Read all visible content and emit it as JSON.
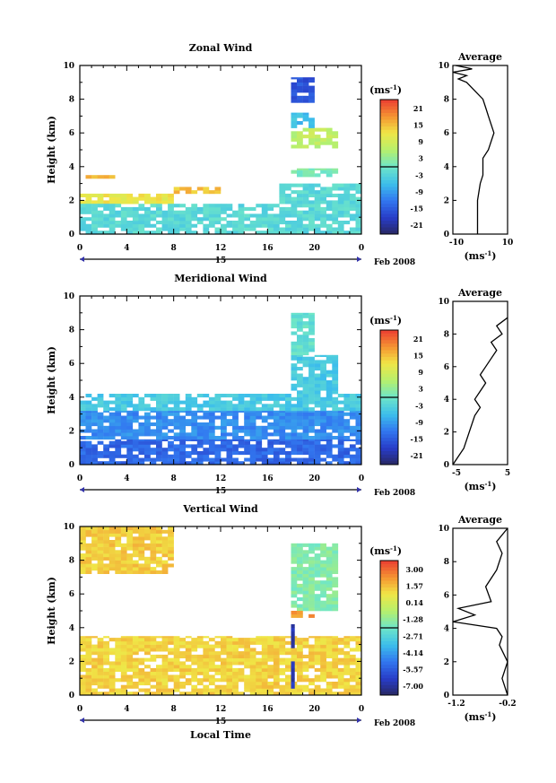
{
  "panels": [
    {
      "title": "Zonal Wind",
      "ylabel": "Height (km)",
      "yticks": [
        "0",
        "2",
        "4",
        "6",
        "8",
        "10"
      ],
      "xticks": [
        "0",
        "4",
        "8",
        "12",
        "16",
        "20",
        "0"
      ],
      "date_center": "15",
      "date_suffix": "Feb 2008",
      "cb_units": "(ms",
      "cb_sup": "-1",
      "cb_ticks": [
        "21",
        "15",
        "9",
        "3",
        "-3",
        "-9",
        "-15",
        "-21"
      ],
      "avg_title": "Average",
      "avg_xticks": [
        "-10",
        "10"
      ],
      "avg_yticks": [
        "0",
        "2",
        "4",
        "6",
        "8",
        "10"
      ],
      "avg_units": "(ms",
      "avg_sup": "-1"
    },
    {
      "title": "Meridional Wind",
      "ylabel": "Height (km)",
      "yticks": [
        "0",
        "2",
        "4",
        "6",
        "8",
        "10"
      ],
      "xticks": [
        "0",
        "4",
        "8",
        "12",
        "16",
        "20",
        "0"
      ],
      "date_center": "15",
      "date_suffix": "Feb 2008",
      "cb_units": "(ms",
      "cb_sup": "-1",
      "cb_ticks": [
        "21",
        "15",
        "9",
        "3",
        "-3",
        "-9",
        "-15",
        "-21"
      ],
      "avg_title": "Average",
      "avg_xticks": [
        "-5",
        "5"
      ],
      "avg_yticks": [
        "0",
        "2",
        "4",
        "6",
        "8",
        "10"
      ],
      "avg_units": "(ms",
      "avg_sup": "-1"
    },
    {
      "title": "Vertical Wind",
      "ylabel": "Height (km)",
      "yticks": [
        "0",
        "2",
        "4",
        "6",
        "8",
        "10"
      ],
      "xticks": [
        "0",
        "4",
        "8",
        "12",
        "16",
        "20",
        "0"
      ],
      "date_center": "15",
      "date_suffix": "Feb 2008",
      "xlabel": "Local Time",
      "cb_units": "(ms",
      "cb_sup": "-1",
      "cb_ticks": [
        "3.00",
        "1.57",
        "0.14",
        "-1.28",
        "-2.71",
        "-4.14",
        "-5.57",
        "-7.00"
      ],
      "avg_title": "Average",
      "avg_xticks": [
        "-1.2",
        "-0.2"
      ],
      "avg_yticks": [
        "0",
        "2",
        "4",
        "6",
        "8",
        "10"
      ],
      "avg_units": "(ms",
      "avg_sup": "-1"
    }
  ],
  "chart_data": [
    {
      "type": "heatmap",
      "title": "Zonal Wind",
      "xlabel": "",
      "ylabel": "Height (km)",
      "xlim": [
        0,
        24
      ],
      "ylim": [
        0,
        10
      ],
      "colorbar": {
        "units": "ms-1",
        "range": [
          -21,
          21
        ]
      },
      "regions": [
        {
          "t": [
            0,
            8
          ],
          "h": [
            1.8,
            2.4
          ],
          "value": 10
        },
        {
          "t": [
            0,
            3
          ],
          "h": [
            3.3,
            3.5
          ],
          "value": 14
        },
        {
          "t": [
            8,
            12
          ],
          "h": [
            2.4,
            2.8
          ],
          "value": 13
        },
        {
          "t": [
            0,
            17
          ],
          "h": [
            0,
            1.8
          ],
          "value": -2
        },
        {
          "t": [
            17,
            24
          ],
          "h": [
            0,
            3.0
          ],
          "value": -2
        },
        {
          "t": [
            18,
            22
          ],
          "h": [
            3.4,
            3.9
          ],
          "value": 1
        },
        {
          "t": [
            18,
            22
          ],
          "h": [
            5.1,
            6.3
          ],
          "value": 6
        },
        {
          "t": [
            18,
            20
          ],
          "h": [
            6.3,
            7.2
          ],
          "value": -5
        },
        {
          "t": [
            18,
            20
          ],
          "h": [
            7.8,
            9.3
          ],
          "value": -14
        }
      ],
      "average_profile": {
        "x": [
          -1,
          -1,
          -1,
          0,
          1,
          1,
          1,
          3,
          4,
          5,
          4,
          3,
          2,
          1,
          -2,
          -5,
          -8,
          -5,
          -10,
          -3,
          -9
        ],
        "y": [
          0,
          1,
          2,
          3,
          3.5,
          4,
          4.5,
          5,
          5.5,
          6,
          6.5,
          7,
          7.5,
          8,
          8.5,
          9,
          9.2,
          9.4,
          9.6,
          9.8,
          10
        ],
        "xlim": [
          -10,
          10
        ],
        "ylim": [
          0,
          10
        ]
      }
    },
    {
      "type": "heatmap",
      "title": "Meridional Wind",
      "xlabel": "",
      "ylabel": "Height (km)",
      "xlim": [
        0,
        24
      ],
      "ylim": [
        0,
        10
      ],
      "colorbar": {
        "units": "ms-1",
        "range": [
          -21,
          21
        ]
      },
      "regions": [
        {
          "t": [
            0,
            24
          ],
          "h": [
            0,
            1.5
          ],
          "value": -12
        },
        {
          "t": [
            0,
            24
          ],
          "h": [
            1.5,
            3.2
          ],
          "value": -9
        },
        {
          "t": [
            0,
            24
          ],
          "h": [
            3.2,
            4.2
          ],
          "value": -4
        },
        {
          "t": [
            18,
            22
          ],
          "h": [
            4.2,
            6.5
          ],
          "value": -4
        },
        {
          "t": [
            18,
            20
          ],
          "h": [
            6.5,
            9.0
          ],
          "value": -1
        }
      ],
      "average_profile": {
        "x": [
          -5,
          -3,
          -2,
          -1,
          0,
          -1,
          0,
          1,
          0,
          1,
          2,
          3,
          2,
          4,
          3,
          5
        ],
        "y": [
          0,
          1,
          2,
          3,
          3.5,
          4,
          4.5,
          5,
          5.5,
          6,
          6.5,
          7,
          7.5,
          8,
          8.5,
          9
        ],
        "xlim": [
          -5,
          5
        ],
        "ylim": [
          0,
          10
        ]
      }
    },
    {
      "type": "heatmap",
      "title": "Vertical Wind",
      "xlabel": "Local Time",
      "ylabel": "Height (km)",
      "xlim": [
        0,
        24
      ],
      "ylim": [
        0,
        10
      ],
      "colorbar": {
        "units": "ms-1",
        "range": [
          -7.0,
          3.0
        ]
      },
      "regions": [
        {
          "t": [
            0,
            24
          ],
          "h": [
            0,
            3.5
          ],
          "value": 0.8
        },
        {
          "t": [
            0,
            8
          ],
          "h": [
            7.2,
            10
          ],
          "value": 0.9
        },
        {
          "t": [
            18,
            22
          ],
          "h": [
            5.0,
            9.0
          ],
          "value": -1.6
        },
        {
          "t": [
            18,
            20
          ],
          "h": [
            4.6,
            5.0
          ],
          "value": 1.6
        },
        {
          "t": [
            18,
            18.3
          ],
          "h": [
            0,
            4.5
          ],
          "value": -6
        }
      ],
      "average_profile": {
        "x": [
          -0.2,
          -0.3,
          -0.2,
          -0.35,
          -0.3,
          -0.4,
          -1.2,
          -0.8,
          -1.1,
          -0.5,
          -0.6,
          -0.4,
          -0.3,
          -0.4,
          -0.2
        ],
        "y": [
          0,
          1,
          2,
          3,
          3.5,
          4,
          4.4,
          4.8,
          5.2,
          5.6,
          6.5,
          7.5,
          8.5,
          9.2,
          10
        ],
        "xlim": [
          -1.2,
          -0.2
        ],
        "ylim": [
          0,
          10
        ]
      }
    }
  ]
}
